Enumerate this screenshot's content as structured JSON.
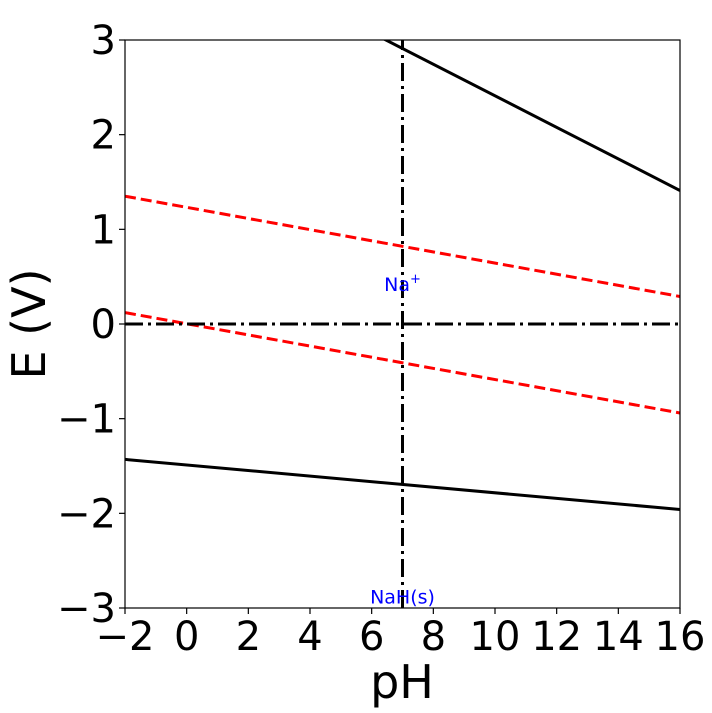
{
  "chart_data": {
    "type": "line",
    "title": "",
    "xlabel": "pH",
    "ylabel": "E (V)",
    "xlim": [
      -2,
      16
    ],
    "ylim": [
      -3,
      3
    ],
    "x_ticks": [
      -2,
      0,
      2,
      4,
      6,
      8,
      10,
      12,
      14,
      16
    ],
    "x_tick_labels": [
      "−2",
      "0",
      "2",
      "4",
      "6",
      "8",
      "10",
      "12",
      "14",
      "16"
    ],
    "y_ticks": [
      -3,
      -2,
      -1,
      0,
      1,
      2,
      3
    ],
    "y_tick_labels": [
      "−3",
      "−2",
      "−1",
      "0",
      "1",
      "2",
      "3"
    ],
    "grid": false,
    "series": [
      {
        "style": "solid",
        "color": "#000000",
        "x": [
          -2,
          16
        ],
        "y": [
          4.41,
          1.41
        ]
      },
      {
        "style": "solid",
        "color": "#000000",
        "x": [
          -2,
          16
        ],
        "y": [
          -1.43,
          -1.96
        ]
      },
      {
        "style": "dashed",
        "color": "#ff0000",
        "x": [
          -2,
          16
        ],
        "y": [
          1.35,
          0.29
        ]
      },
      {
        "style": "dashed",
        "color": "#ff0000",
        "x": [
          -2,
          16
        ],
        "y": [
          0.12,
          -0.94
        ]
      },
      {
        "style": "dashdot",
        "color": "#000000",
        "x": [
          -2,
          16
        ],
        "y": [
          0,
          0
        ]
      },
      {
        "style": "dashdot",
        "color": "#000000",
        "x": [
          7,
          7
        ],
        "y": [
          -3,
          3
        ]
      }
    ],
    "annotations": [
      {
        "text": "Na",
        "superscript": "+",
        "x": 7.0,
        "y": 0.35
      },
      {
        "text": "NaH(s)",
        "x": 7.0,
        "y": -2.95
      }
    ]
  }
}
